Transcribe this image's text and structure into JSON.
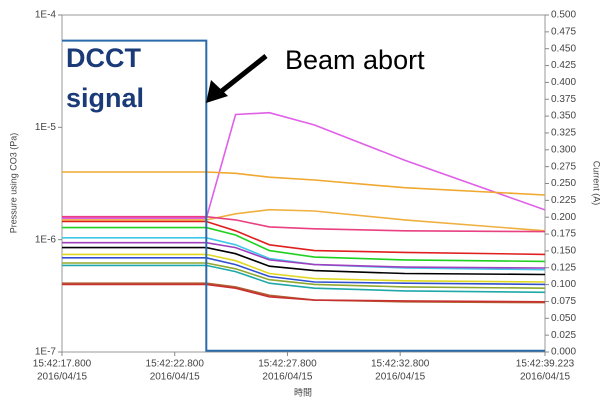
{
  "chart_data": {
    "type": "line",
    "ylabel": "Pressure using CO3 (Pa)",
    "y2label": "Current (A)",
    "xlabel": "時間",
    "annotations": [
      "DCCT",
      "signal",
      "Beam abort"
    ],
    "log_y": true,
    "xlim": [
      17.8,
      39.223
    ],
    "xticks": [
      {
        "value": 17.8,
        "label": "15:42:17.800",
        "date": "2016/04/15"
      },
      {
        "value": 22.8,
        "label": "15:42:22.800",
        "date": "2016/04/15"
      },
      {
        "value": 27.8,
        "label": "15:42:27.800",
        "date": "2016/04/15"
      },
      {
        "value": 32.8,
        "label": "15:42:32.800",
        "date": "2016/04/15"
      },
      {
        "value": 39.223,
        "label": "15:42:39.223",
        "date": "2016/04/15"
      }
    ],
    "ylim": [
      1e-07,
      0.0001
    ],
    "yticks": [
      {
        "value": 1e-07,
        "label": "1E-7"
      },
      {
        "value": 1e-06,
        "label": "1E-6"
      },
      {
        "value": 1e-05,
        "label": "1E-5"
      },
      {
        "value": 0.0001,
        "label": "1E-4"
      }
    ],
    "y2lim": [
      0,
      0.5
    ],
    "y2ticks": [
      {
        "value": 0,
        "label": "0.000"
      },
      {
        "value": 0.025,
        "label": "0.025"
      },
      {
        "value": 0.05,
        "label": "0.050"
      },
      {
        "value": 0.075,
        "label": "0.075"
      },
      {
        "value": 0.1,
        "label": "0.100"
      },
      {
        "value": 0.125,
        "label": "0.125"
      },
      {
        "value": 0.15,
        "label": "0.150"
      },
      {
        "value": 0.175,
        "label": "0.175"
      },
      {
        "value": 0.2,
        "label": "0.200"
      },
      {
        "value": 0.225,
        "label": "0.225"
      },
      {
        "value": 0.25,
        "label": "0.250"
      },
      {
        "value": 0.275,
        "label": "0.275"
      },
      {
        "value": 0.3,
        "label": "0.300"
      },
      {
        "value": 0.325,
        "label": "0.325"
      },
      {
        "value": 0.35,
        "label": "0.350"
      },
      {
        "value": 0.375,
        "label": "0.375"
      },
      {
        "value": 0.4,
        "label": "0.400"
      },
      {
        "value": 0.425,
        "label": "0.425"
      },
      {
        "value": 0.45,
        "label": "0.450"
      },
      {
        "value": 0.475,
        "label": "0.475"
      },
      {
        "value": 0.5,
        "label": "0.500"
      }
    ],
    "series": [
      {
        "color": "#e060e8",
        "x": [
          17.8,
          24.2,
          25.5,
          27,
          29,
          33,
          39.223
        ],
        "values": [
          1.55e-06,
          1.55e-06,
          1.3e-05,
          1.35e-05,
          1.05e-05,
          5.1e-06,
          1.84e-06
        ]
      },
      {
        "color": "#f0a830",
        "x": [
          17.8,
          24.2,
          25.5,
          27,
          29,
          33,
          39.223
        ],
        "values": [
          4e-06,
          4e-06,
          3.9e-06,
          3.6e-06,
          3.4e-06,
          2.9e-06,
          2.5e-06
        ]
      },
      {
        "color": "#f0b040",
        "x": [
          17.8,
          24.2,
          25.5,
          27,
          29,
          33,
          39.223
        ],
        "values": [
          1.5e-06,
          1.5e-06,
          1.7e-06,
          1.85e-06,
          1.8e-06,
          1.5e-06,
          1.2e-06
        ]
      },
      {
        "color": "#e84080",
        "x": [
          17.8,
          24.2,
          25.5,
          27,
          29,
          33,
          39.223
        ],
        "values": [
          1.6e-06,
          1.6e-06,
          1.5e-06,
          1.3e-06,
          1.25e-06,
          1.2e-06,
          1.18e-06
        ]
      },
      {
        "color": "#e02020",
        "x": [
          17.8,
          24.2,
          25.5,
          27,
          29,
          33,
          39.223
        ],
        "values": [
          1.45e-06,
          1.45e-06,
          1.2e-06,
          9e-07,
          8e-07,
          7.7e-07,
          7.4e-07
        ]
      },
      {
        "color": "#20d020",
        "x": [
          17.8,
          24.2,
          25.5,
          27,
          29,
          33,
          39.223
        ],
        "values": [
          1.28e-06,
          1.28e-06,
          1.1e-06,
          8e-07,
          7e-07,
          6.6e-07,
          6.4e-07
        ]
      },
      {
        "color": "#40c8e8",
        "x": [
          17.8,
          24.2,
          25.5,
          27,
          29,
          33,
          39.223
        ],
        "values": [
          1.04e-06,
          1.04e-06,
          9e-07,
          6.8e-07,
          6e-07,
          5.6e-07,
          5.4e-07
        ]
      },
      {
        "color": "#a040c0",
        "x": [
          17.8,
          24.2,
          25.5,
          27,
          29,
          33,
          39.223
        ],
        "values": [
          9.4e-07,
          9.4e-07,
          8.5e-07,
          6.6e-07,
          6e-07,
          5.7e-07,
          5.6e-07
        ]
      },
      {
        "color": "#000000",
        "x": [
          17.8,
          24.2,
          25.5,
          27,
          29,
          33,
          39.223
        ],
        "values": [
          8.5e-07,
          8.5e-07,
          7.5e-07,
          5.8e-07,
          5.3e-07,
          5e-07,
          4.9e-07
        ]
      },
      {
        "color": "#e0d820",
        "x": [
          17.8,
          24.2,
          25.5,
          27,
          29,
          33,
          39.223
        ],
        "values": [
          7.4e-07,
          7.4e-07,
          6.5e-07,
          5e-07,
          4.5e-07,
          4.3e-07,
          4.2e-07
        ]
      },
      {
        "color": "#3050d0",
        "x": [
          17.8,
          24.2,
          25.5,
          27,
          29,
          33,
          39.223
        ],
        "values": [
          6.9e-07,
          6.9e-07,
          6e-07,
          4.7e-07,
          4.2e-07,
          4.1e-07,
          4e-07
        ]
      },
      {
        "color": "#90a830",
        "x": [
          17.8,
          24.2,
          25.5,
          27,
          29,
          33,
          39.223
        ],
        "values": [
          6.2e-07,
          6.2e-07,
          5.5e-07,
          4.4e-07,
          4e-07,
          3.8e-07,
          3.7e-07
        ]
      },
      {
        "color": "#20a8a8",
        "x": [
          17.8,
          24.2,
          25.5,
          27,
          29,
          33,
          39.223
        ],
        "values": [
          5.9e-07,
          5.9e-07,
          5.2e-07,
          4.1e-07,
          3.7e-07,
          3.5e-07,
          3.4e-07
        ]
      },
      {
        "color": "#b06030",
        "x": [
          17.8,
          24.2,
          25.5,
          27,
          29,
          33,
          39.223
        ],
        "values": [
          4.1e-07,
          4.1e-07,
          3.8e-07,
          3.2e-07,
          2.9e-07,
          2.8e-07,
          2.75e-07
        ]
      },
      {
        "color": "#c83030",
        "x": [
          17.8,
          24.2,
          25.5,
          27,
          29,
          33,
          39.223
        ],
        "values": [
          4e-07,
          4e-07,
          3.7e-07,
          3.1e-07,
          2.9e-07,
          2.85e-07,
          2.8e-07
        ]
      },
      {
        "color": "#2a6aa8",
        "axis": "y2",
        "x": [
          17.8,
          24.2,
          24.2,
          39.223
        ],
        "values": [
          0.462,
          0.462,
          0.002,
          0.002
        ]
      }
    ]
  }
}
